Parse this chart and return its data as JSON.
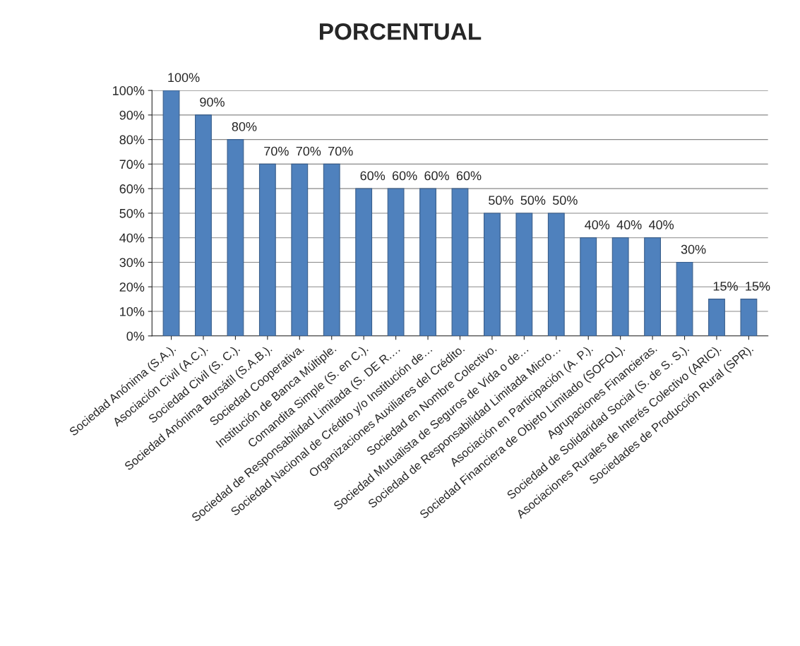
{
  "chart_data": {
    "type": "bar",
    "title": "PORCENTUAL",
    "categories": [
      "Sociedad Anónima (S.A.).",
      "Asociación Civil (A.C.).",
      "Sociedad Civil (S. C.).",
      "Sociedad Anónima Bursátil (S.A.B.).",
      "Sociedad Cooperativa.",
      "Institución de Banca Múltiple.",
      "Comandita Simple (S. en C.).",
      "Sociedad de Responsabilidad Limitada (S. DE R.…",
      "Sociedad Nacional de Crédito y/o Institución de…",
      "Organizaciones Auxiliares del Crédito.",
      "Sociedad en Nombre Colectivo.",
      "Sociedad Mutualista de Seguros de Vida o de…",
      "Sociedad de Responsabilidad Limitada Micro…",
      "Asociación en Participación (A. P.).",
      "Sociedad Financiera de Objeto Limitado (SOFOL).",
      "Agrupaciones Financieras.",
      "Sociedad de Solidaridad Social (S. de S. S.).",
      "Asociaciones Rurales de Interés Colectivo (ARIC).",
      "Sociedades de Producción Rural (SPR)."
    ],
    "values": [
      100,
      90,
      80,
      70,
      70,
      70,
      60,
      60,
      60,
      60,
      50,
      50,
      50,
      40,
      40,
      40,
      30,
      15,
      15
    ],
    "value_labels": [
      "100%",
      "90%",
      "80%",
      "70%",
      "70%",
      "70%",
      "60%",
      "60%",
      "60%",
      "60%",
      "50%",
      "50%",
      "50%",
      "40%",
      "40%",
      "40%",
      "30%",
      "15%",
      "15%"
    ],
    "color": "#4f81bd",
    "ylim": [
      0,
      100
    ],
    "yticks": [
      {
        "value": 0,
        "label": "0%"
      },
      {
        "value": 10,
        "label": "10%"
      },
      {
        "value": 20,
        "label": "20%"
      },
      {
        "value": 30,
        "label": "30%"
      },
      {
        "value": 40,
        "label": "40%"
      },
      {
        "value": 50,
        "label": "50%"
      },
      {
        "value": 60,
        "label": "60%"
      },
      {
        "value": 70,
        "label": "70%"
      },
      {
        "value": 80,
        "label": "80%"
      },
      {
        "value": 90,
        "label": "90%"
      },
      {
        "value": 100,
        "label": "100%"
      }
    ],
    "grid": "y",
    "legend": false
  }
}
